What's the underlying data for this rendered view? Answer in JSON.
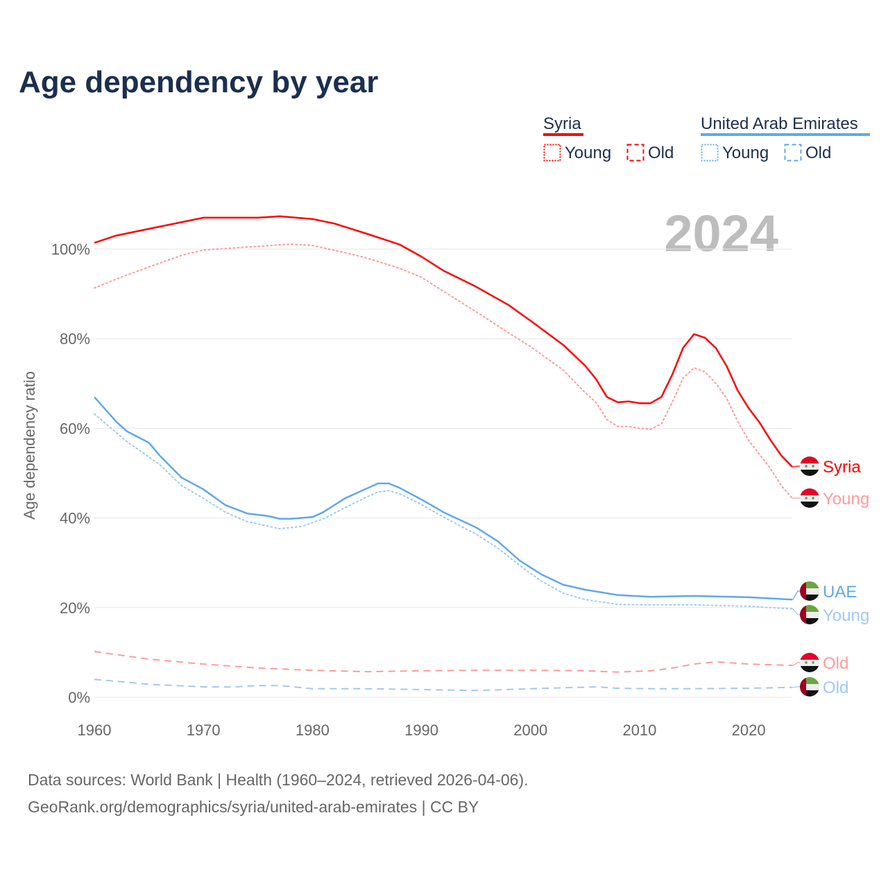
{
  "chart_data": {
    "type": "line",
    "title": "Age dependency by year",
    "ylabel": "Age dependency ratio",
    "xlabel": "",
    "year_label": "2024",
    "xlim": [
      1960,
      2024
    ],
    "ylim": [
      0,
      110
    ],
    "x_ticks": [
      "1960",
      "1970",
      "1980",
      "1990",
      "2000",
      "2010",
      "2020"
    ],
    "y_ticks": [
      "0%",
      "20%",
      "40%",
      "60%",
      "80%",
      "100%"
    ],
    "grid": true,
    "legend": {
      "placement": "top-right",
      "groups": [
        {
          "name": "Syria",
          "items": [
            "Young",
            "Old"
          ]
        },
        {
          "name": "United Arab Emirates",
          "items": [
            "Young",
            "Old"
          ]
        }
      ]
    },
    "series": [
      {
        "name": "Syria",
        "end_label": "Syria",
        "country": "Syria",
        "color": "#ff0000",
        "style": "solid",
        "points": [
          [
            1960,
            101.4
          ],
          [
            1962,
            103
          ],
          [
            1965,
            104.5
          ],
          [
            1970,
            107
          ],
          [
            1975,
            107
          ],
          [
            1977,
            107.3
          ],
          [
            1980,
            106.7
          ],
          [
            1982,
            105.7
          ],
          [
            1985,
            103.4
          ],
          [
            1988,
            101
          ],
          [
            1990,
            98.3
          ],
          [
            1992,
            95.2
          ],
          [
            1995,
            91.6
          ],
          [
            1998,
            87.5
          ],
          [
            2000,
            84
          ],
          [
            2003,
            78.6
          ],
          [
            2005,
            74
          ],
          [
            2006,
            71
          ],
          [
            2007,
            67
          ],
          [
            2008,
            65.8
          ],
          [
            2009,
            66
          ],
          [
            2010,
            65.6
          ],
          [
            2011,
            65.6
          ],
          [
            2012,
            67
          ],
          [
            2013,
            72
          ],
          [
            2014,
            78
          ],
          [
            2015,
            81
          ],
          [
            2016,
            80.2
          ],
          [
            2017,
            77.9
          ],
          [
            2018,
            73.8
          ],
          [
            2019,
            68.4
          ],
          [
            2020,
            64.5
          ],
          [
            2021,
            61.3
          ],
          [
            2022,
            57.4
          ],
          [
            2023,
            53.9
          ],
          [
            2024,
            51.4
          ]
        ]
      },
      {
        "name": "Syria Young",
        "end_label": "Young",
        "country": "Syria",
        "color": "#ff9a9a",
        "style": "dotted",
        "points": [
          [
            1960,
            91.3
          ],
          [
            1962,
            93.3
          ],
          [
            1965,
            96
          ],
          [
            1968,
            98.6
          ],
          [
            1970,
            99.8
          ],
          [
            1975,
            100.6
          ],
          [
            1978,
            101.1
          ],
          [
            1980,
            100.8
          ],
          [
            1983,
            99.2
          ],
          [
            1985,
            98
          ],
          [
            1988,
            95.7
          ],
          [
            1990,
            93.7
          ],
          [
            1992,
            90.6
          ],
          [
            1995,
            86
          ],
          [
            1998,
            81.3
          ],
          [
            2000,
            78.2
          ],
          [
            2003,
            73
          ],
          [
            2005,
            68
          ],
          [
            2006,
            65.8
          ],
          [
            2007,
            62
          ],
          [
            2008,
            60.4
          ],
          [
            2009,
            60.4
          ],
          [
            2010,
            60
          ],
          [
            2011,
            59.8
          ],
          [
            2012,
            61
          ],
          [
            2013,
            65.8
          ],
          [
            2014,
            71.2
          ],
          [
            2015,
            73.5
          ],
          [
            2016,
            72.6
          ],
          [
            2017,
            70
          ],
          [
            2018,
            66.6
          ],
          [
            2019,
            61.5
          ],
          [
            2020,
            57.3
          ],
          [
            2021,
            54.2
          ],
          [
            2022,
            51
          ],
          [
            2023,
            47.2
          ],
          [
            2024,
            44.4
          ]
        ]
      },
      {
        "name": "Syria Old",
        "end_label": "Old",
        "country": "Syria",
        "color": "#ff9a9a",
        "style": "dashed",
        "points": [
          [
            1960,
            10.2
          ],
          [
            1965,
            8.5
          ],
          [
            1970,
            7.4
          ],
          [
            1975,
            6.5
          ],
          [
            1980,
            6.0
          ],
          [
            1985,
            5.7
          ],
          [
            1990,
            5.9
          ],
          [
            1995,
            6.0
          ],
          [
            2000,
            6.0
          ],
          [
            2005,
            5.9
          ],
          [
            2008,
            5.6
          ],
          [
            2011,
            5.9
          ],
          [
            2013,
            6.5
          ],
          [
            2015,
            7.4
          ],
          [
            2017,
            7.9
          ],
          [
            2020,
            7.4
          ],
          [
            2024,
            7.1
          ]
        ]
      },
      {
        "name": "UAE",
        "end_label": "UAE",
        "country": "UAE",
        "color": "#5fa8ec",
        "style": "solid",
        "points": [
          [
            1960,
            67
          ],
          [
            1962,
            61.5
          ],
          [
            1963,
            59.3
          ],
          [
            1965,
            56.8
          ],
          [
            1966,
            53.9
          ],
          [
            1968,
            49
          ],
          [
            1970,
            46.4
          ],
          [
            1972,
            42.9
          ],
          [
            1974,
            41
          ],
          [
            1976,
            40.4
          ],
          [
            1977,
            39.8
          ],
          [
            1978,
            39.8
          ],
          [
            1980,
            40.2
          ],
          [
            1981,
            41.3
          ],
          [
            1983,
            44.4
          ],
          [
            1985,
            46.6
          ],
          [
            1986,
            47.7
          ],
          [
            1987,
            47.7
          ],
          [
            1988,
            46.7
          ],
          [
            1990,
            44.1
          ],
          [
            1992,
            41.3
          ],
          [
            1995,
            37.9
          ],
          [
            1997,
            34.8
          ],
          [
            1999,
            30.5
          ],
          [
            2001,
            27.4
          ],
          [
            2003,
            25.1
          ],
          [
            2005,
            24
          ],
          [
            2008,
            22.8
          ],
          [
            2011,
            22.4
          ],
          [
            2015,
            22.6
          ],
          [
            2020,
            22.3
          ],
          [
            2024,
            21.8
          ]
        ]
      },
      {
        "name": "UAE Young",
        "end_label": "Young",
        "country": "UAE",
        "color": "#9fc9f3",
        "style": "dotted",
        "points": [
          [
            1960,
            63.2
          ],
          [
            1963,
            57
          ],
          [
            1966,
            51.9
          ],
          [
            1968,
            47.2
          ],
          [
            1970,
            44.4
          ],
          [
            1972,
            41.3
          ],
          [
            1974,
            39.2
          ],
          [
            1977,
            37.6
          ],
          [
            1979,
            38.1
          ],
          [
            1981,
            39.8
          ],
          [
            1983,
            42.3
          ],
          [
            1985,
            44.7
          ],
          [
            1986,
            45.8
          ],
          [
            1987,
            46.1
          ],
          [
            1988,
            45.4
          ],
          [
            1990,
            43
          ],
          [
            1992,
            40.2
          ],
          [
            1995,
            36.4
          ],
          [
            1997,
            33.3
          ],
          [
            1999,
            29.4
          ],
          [
            2001,
            25.9
          ],
          [
            2003,
            23.2
          ],
          [
            2005,
            21.8
          ],
          [
            2008,
            20.7
          ],
          [
            2011,
            20.6
          ],
          [
            2015,
            20.6
          ],
          [
            2020,
            20.3
          ],
          [
            2024,
            19.7
          ]
        ]
      },
      {
        "name": "UAE Old",
        "end_label": "Old",
        "country": "UAE",
        "color": "#9fc9f3",
        "style": "dashed",
        "points": [
          [
            1960,
            4.0
          ],
          [
            1965,
            2.9
          ],
          [
            1970,
            2.3
          ],
          [
            1973,
            2.3
          ],
          [
            1975,
            2.6
          ],
          [
            1977,
            2.6
          ],
          [
            1980,
            1.9
          ],
          [
            1985,
            1.9
          ],
          [
            1990,
            1.7
          ],
          [
            1995,
            1.5
          ],
          [
            2000,
            1.9
          ],
          [
            2006,
            2.3
          ],
          [
            2008,
            2.0
          ],
          [
            2011,
            1.9
          ],
          [
            2015,
            1.9
          ],
          [
            2020,
            2.0
          ],
          [
            2024,
            2.2
          ]
        ]
      }
    ]
  },
  "legend_colors": {
    "syria": "#ff0000",
    "uae": "#5fa8ec"
  },
  "source": {
    "line1": "Data sources: World Bank | Health (1960–2024, retrieved 2026-04-06).",
    "line2": "GeoRank.org/demographics/syria/united-arab-emirates | CC BY"
  }
}
